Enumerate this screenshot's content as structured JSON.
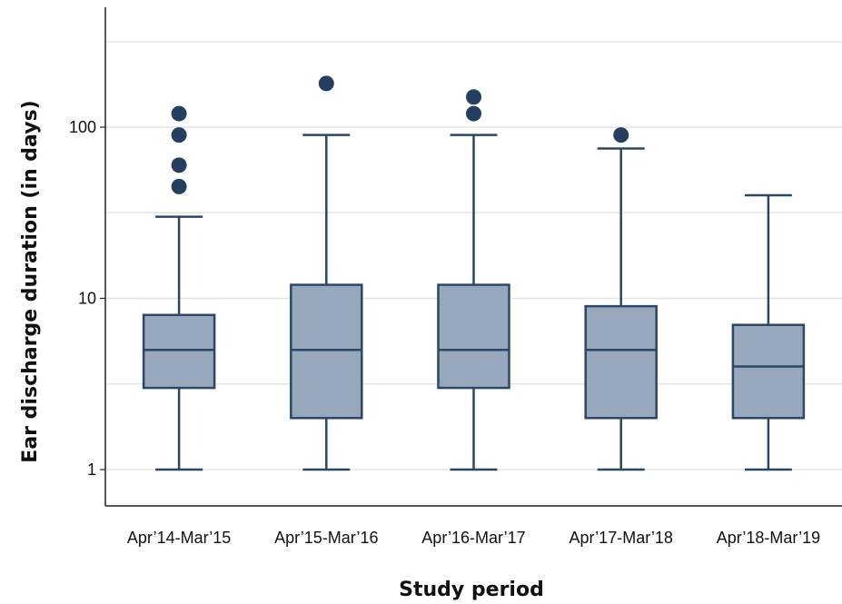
{
  "chart_data": {
    "type": "box",
    "title": "",
    "xlabel": "Study period",
    "ylabel": "Ear discharge duration (in days)",
    "yscale": "log",
    "ylim": [
      0.85,
      500
    ],
    "y_ticks": [
      1,
      10,
      100
    ],
    "y_tick_labels": [
      "1",
      "10",
      "100"
    ],
    "grid": "horizontal",
    "colors": {
      "box_fill": "#97a8bd",
      "box_stroke": "#2c4766",
      "outlier": "#243f60",
      "grid": "#e5e5e5",
      "axis": "#222222"
    },
    "categories": [
      "Apr’14-Mar’15",
      "Apr’15-Mar’16",
      "Apr’16-Mar’17",
      "Apr’17-Mar’18",
      "Apr’18-Mar’19"
    ],
    "boxes": [
      {
        "whisker_low": 1,
        "q1": 3,
        "median": 5,
        "q3": 8,
        "whisker_high": 30,
        "outliers": [
          45,
          60,
          90,
          120
        ]
      },
      {
        "whisker_low": 1,
        "q1": 2,
        "median": 5,
        "q3": 12,
        "whisker_high": 90,
        "outliers": [
          180
        ]
      },
      {
        "whisker_low": 1,
        "q1": 3,
        "median": 5,
        "q3": 12,
        "whisker_high": 90,
        "outliers": [
          120,
          150
        ]
      },
      {
        "whisker_low": 1,
        "q1": 2,
        "median": 5,
        "q3": 9,
        "whisker_high": 75,
        "outliers": [
          90
        ]
      },
      {
        "whisker_low": 1,
        "q1": 2,
        "median": 4,
        "q3": 7,
        "whisker_high": 40,
        "outliers": []
      }
    ]
  }
}
